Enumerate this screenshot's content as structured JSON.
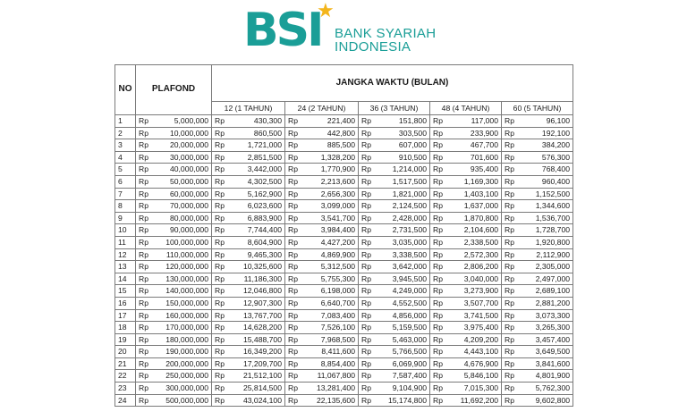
{
  "brand": {
    "mark": "BSI",
    "line1": "BANK SYARIAH",
    "line2": "INDONESIA",
    "colors": {
      "teal": "#1a9e97",
      "star": "#f3b51b"
    }
  },
  "table": {
    "headers": {
      "no": "NO",
      "plafond": "PLAFOND",
      "tenor": "JANGKA WAKTU (BULAN)"
    },
    "tenors": [
      "12 (1 TAHUN)",
      "24 (2 TAHUN)",
      "36 (3 TAHUN)",
      "48 (4 TAHUN)",
      "60 (5 TAHUN)"
    ],
    "currency": "Rp",
    "rows": [
      {
        "no": "1",
        "plafond": "5,000,000",
        "v": [
          "430,300",
          "221,400",
          "151,800",
          "117,000",
          "96,100"
        ]
      },
      {
        "no": "2",
        "plafond": "10,000,000",
        "v": [
          "860,500",
          "442,800",
          "303,500",
          "233,900",
          "192,100"
        ]
      },
      {
        "no": "3",
        "plafond": "20,000,000",
        "v": [
          "1,721,000",
          "885,500",
          "607,000",
          "467,700",
          "384,200"
        ]
      },
      {
        "no": "4",
        "plafond": "30,000,000",
        "v": [
          "2,851,500",
          "1,328,200",
          "910,500",
          "701,600",
          "576,300"
        ]
      },
      {
        "no": "5",
        "plafond": "40,000,000",
        "v": [
          "3,442,000",
          "1,770,900",
          "1,214,000",
          "935,400",
          "768,400"
        ]
      },
      {
        "no": "6",
        "plafond": "50,000,000",
        "v": [
          "4,302,500",
          "2,213,600",
          "1,517,500",
          "1,169,300",
          "960,400"
        ]
      },
      {
        "no": "7",
        "plafond": "60,000,000",
        "v": [
          "5,162,900",
          "2,656,300",
          "1,821,000",
          "1,403,100",
          "1,152,500"
        ]
      },
      {
        "no": "8",
        "plafond": "70,000,000",
        "v": [
          "6,023,600",
          "3,099,000",
          "2,124,500",
          "1,637,000",
          "1,344,600"
        ]
      },
      {
        "no": "9",
        "plafond": "80,000,000",
        "v": [
          "6,883,900",
          "3,541,700",
          "2,428,000",
          "1,870,800",
          "1,536,700"
        ]
      },
      {
        "no": "10",
        "plafond": "90,000,000",
        "v": [
          "7,744,400",
          "3,984,400",
          "2,731,500",
          "2,104,600",
          "1,728,700"
        ]
      },
      {
        "no": "11",
        "plafond": "100,000,000",
        "v": [
          "8,604,900",
          "4,427,200",
          "3,035,000",
          "2,338,500",
          "1,920,800"
        ]
      },
      {
        "no": "12",
        "plafond": "110,000,000",
        "v": [
          "9,465,300",
          "4,869,900",
          "3,338,500",
          "2,572,300",
          "2,112,900"
        ]
      },
      {
        "no": "13",
        "plafond": "120,000,000",
        "v": [
          "10,325,600",
          "5,312,500",
          "3,642,000",
          "2,806,200",
          "2,305,000"
        ]
      },
      {
        "no": "14",
        "plafond": "130,000,000",
        "v": [
          "11,186,300",
          "5,755,300",
          "3,945,500",
          "3,040,000",
          "2,497,000"
        ]
      },
      {
        "no": "15",
        "plafond": "140,000,000",
        "v": [
          "12,046,800",
          "6,198,000",
          "4,249,000",
          "3,273,900",
          "2,689,100"
        ]
      },
      {
        "no": "16",
        "plafond": "150,000,000",
        "v": [
          "12,907,300",
          "6,640,700",
          "4,552,500",
          "3,507,700",
          "2,881,200"
        ]
      },
      {
        "no": "17",
        "plafond": "160,000,000",
        "v": [
          "13,767,700",
          "7,083,400",
          "4,856,000",
          "3,741,500",
          "3,073,300"
        ]
      },
      {
        "no": "18",
        "plafond": "170,000,000",
        "v": [
          "14,628,200",
          "7,526,100",
          "5,159,500",
          "3,975,400",
          "3,265,300"
        ]
      },
      {
        "no": "19",
        "plafond": "180,000,000",
        "v": [
          "15,488,700",
          "7,968,500",
          "5,463,000",
          "4,209,200",
          "3,457,400"
        ]
      },
      {
        "no": "20",
        "plafond": "190,000,000",
        "v": [
          "16,349,200",
          "8,411,600",
          "5,766,500",
          "4,443,100",
          "3,649,500"
        ]
      },
      {
        "no": "21",
        "plafond": "200,000,000",
        "v": [
          "17,209,700",
          "8,854,400",
          "6,069,900",
          "4,676,900",
          "3,841,600"
        ]
      },
      {
        "no": "22",
        "plafond": "250,000,000",
        "v": [
          "21,512,100",
          "11,067,800",
          "7,587,400",
          "5,846,100",
          "4,801,900"
        ]
      },
      {
        "no": "23",
        "plafond": "300,000,000",
        "v": [
          "25,814,500",
          "13,281,400",
          "9,104,900",
          "7,015,300",
          "5,762,300"
        ]
      },
      {
        "no": "24",
        "plafond": "500,000,000",
        "v": [
          "43,024,100",
          "22,135,600",
          "15,174,800",
          "11,692,200",
          "9,602,800"
        ]
      }
    ]
  }
}
